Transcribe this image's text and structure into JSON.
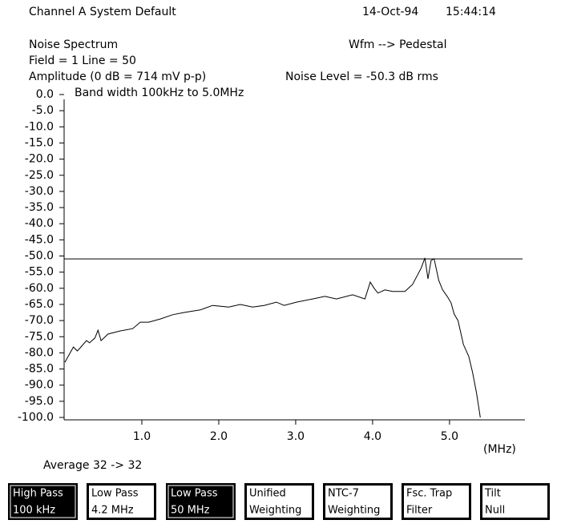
{
  "header": {
    "title": "Channel A System Default",
    "date": "14-Oct-94",
    "time": "15:44:14",
    "measurement": "Noise Spectrum",
    "waveform": "Wfm --> Pedestal",
    "field_line": "Field = 1 Line = 50",
    "noise_level": "Noise Level = -50.3 dB rms"
  },
  "chart_data": {
    "type": "line",
    "y_label": "Amplitude (0 dB = 714 mV p-p)",
    "annotation": "Band width 100kHz to 5.0MHz",
    "x_label": "(MHz)",
    "xlim": [
      0,
      5.97
    ],
    "ylim": [
      -100,
      0
    ],
    "xticks": [
      {
        "value": 1,
        "label": "1.0"
      },
      {
        "value": 2,
        "label": "2.0"
      },
      {
        "value": 3,
        "label": "3.0"
      },
      {
        "value": 4,
        "label": "4.0"
      },
      {
        "value": 5,
        "label": "5.0"
      }
    ],
    "yticks": [
      {
        "value": 0,
        "label": "0.0"
      },
      {
        "value": -5,
        "label": "-5.0"
      },
      {
        "value": -10,
        "label": "-10.0"
      },
      {
        "value": -15,
        "label": "-15.0"
      },
      {
        "value": -20,
        "label": "-20.0"
      },
      {
        "value": -25,
        "label": "-25.0"
      },
      {
        "value": -30,
        "label": "-30.0"
      },
      {
        "value": -35,
        "label": "-35.0"
      },
      {
        "value": -40,
        "label": "-40.0"
      },
      {
        "value": -45,
        "label": "-45.0"
      },
      {
        "value": -50,
        "label": "-50.0"
      },
      {
        "value": -55,
        "label": "-55.0"
      },
      {
        "value": -60,
        "label": "-60.0"
      },
      {
        "value": -65,
        "label": "-65.0"
      },
      {
        "value": -70,
        "label": "-70.0"
      },
      {
        "value": -75,
        "label": "-75.0"
      },
      {
        "value": -80,
        "label": "-80.0"
      },
      {
        "value": -85,
        "label": "-85.0"
      },
      {
        "value": -90,
        "label": "-90.0"
      },
      {
        "value": -95,
        "label": "-95.0"
      },
      {
        "value": -100,
        "label": "-100.0"
      }
    ],
    "reference_level": -50.9,
    "series": [
      {
        "color": "#000000",
        "x": [
          0.0,
          0.07,
          0.11,
          0.16,
          0.2,
          0.28,
          0.32,
          0.39,
          0.43,
          0.47,
          0.56,
          0.72,
          0.88,
          0.98,
          1.09,
          1.24,
          1.4,
          1.55,
          1.76,
          1.92,
          2.13,
          2.28,
          2.44,
          2.59,
          2.75,
          2.85,
          3.01,
          3.22,
          3.38,
          3.53,
          3.74,
          3.9,
          3.97,
          4.02,
          4.07,
          4.16,
          4.26,
          4.42,
          4.52,
          4.63,
          4.68,
          4.72,
          4.76,
          4.8,
          4.86,
          4.91,
          4.97,
          5.02,
          5.06,
          5.11,
          5.18,
          5.25,
          5.3,
          5.35,
          5.4
        ],
        "values": [
          -82.9,
          -79.9,
          -78.2,
          -79.4,
          -78.4,
          -76.2,
          -76.9,
          -75.4,
          -73.0,
          -76.2,
          -74.2,
          -73.2,
          -72.5,
          -70.5,
          -70.5,
          -69.5,
          -68.2,
          -67.5,
          -66.7,
          -65.3,
          -65.8,
          -65.0,
          -65.8,
          -65.3,
          -64.3,
          -65.3,
          -64.3,
          -63.3,
          -62.5,
          -63.3,
          -62.0,
          -63.3,
          -58.1,
          -60.0,
          -61.5,
          -60.5,
          -61.0,
          -61.0,
          -58.8,
          -53.8,
          -50.6,
          -57.1,
          -51.4,
          -50.9,
          -57.6,
          -60.5,
          -62.5,
          -64.5,
          -68.0,
          -70.0,
          -77.4,
          -81.1,
          -86.1,
          -92.3,
          -100.0
        ]
      }
    ]
  },
  "footer": {
    "average": "Average  32 -> 32"
  },
  "buttons": [
    {
      "line1": "High Pass",
      "line2": "100 kHz",
      "selected": true
    },
    {
      "line1": "Low Pass",
      "line2": "4.2 MHz",
      "selected": false
    },
    {
      "line1": "Low Pass",
      "line2": "50 MHz",
      "selected": true
    },
    {
      "line1": "Unified",
      "line2": "Weighting",
      "selected": false
    },
    {
      "line1": "NTC-7",
      "line2": "Weighting",
      "selected": false
    },
    {
      "line1": "Fsc. Trap",
      "line2": "Filter",
      "selected": false
    },
    {
      "line1": "Tilt",
      "line2": "Null",
      "selected": false
    }
  ]
}
